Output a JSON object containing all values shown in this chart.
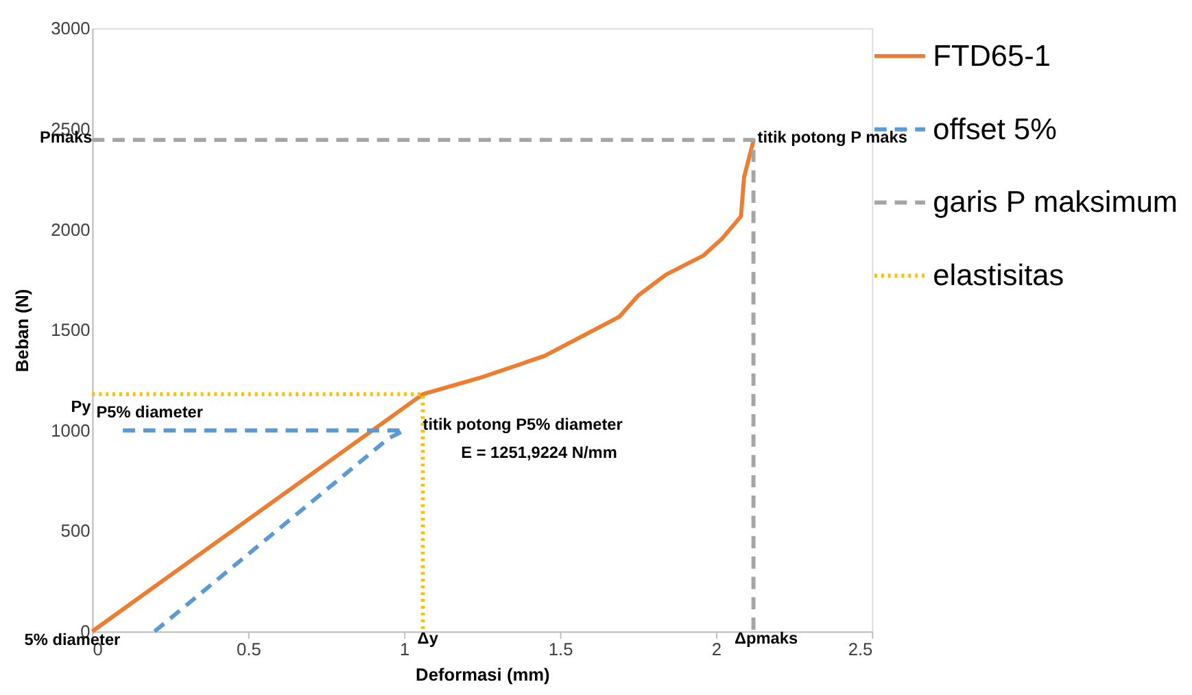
{
  "chart_data": {
    "type": "line",
    "xlabel": "Deformasi (mm)",
    "ylabel": "Beban (N)",
    "xlim": [
      0,
      2.5
    ],
    "xticks": [
      0,
      0.5,
      1,
      1.5,
      2,
      2.5
    ],
    "ylim": [
      0,
      3000
    ],
    "yticks": [
      0,
      500,
      1000,
      1500,
      2000,
      2500,
      3000
    ],
    "grid": false,
    "legend": "right",
    "marker": "none",
    "series": [
      {
        "name": "FTD65-1",
        "color": "#ed7d31",
        "line_style": "solid",
        "x": [
          0,
          1.06,
          1.24,
          1.45,
          1.69,
          1.75,
          1.84,
          1.96,
          2.02,
          2.08,
          2.09,
          2.12
        ],
        "values": [
          0,
          1180,
          1260,
          1370,
          1565,
          1670,
          1775,
          1870,
          1955,
          2065,
          2260,
          2440
        ]
      },
      {
        "name": "offset 5%",
        "color": "#5b9bd5",
        "line_style": "dashed",
        "x": [
          0.2,
          0.95,
          1.0,
          0.08
        ],
        "values": [
          0,
          960,
          1000,
          1000
        ]
      },
      {
        "name": "garis P maksimum",
        "color": "#a5a5a5",
        "line_style": "dashed",
        "x": [
          0,
          2.12,
          2.12
        ],
        "values": [
          2445,
          2445,
          0
        ]
      },
      {
        "name": "elastisitas",
        "color": "#ffc000",
        "line_style": "dotted",
        "x": [
          0,
          1.06,
          1.06
        ],
        "values": [
          1180,
          1180,
          0
        ]
      }
    ],
    "annotations": [
      {
        "text": "Pmaks",
        "x": 0,
        "y": 2445
      },
      {
        "text": "titik potong P maks",
        "x": 2.12,
        "y": 2445
      },
      {
        "text": "Py",
        "x": 0,
        "y": 1180
      },
      {
        "text": "P5% diameter",
        "x": 0,
        "y": 1180
      },
      {
        "text": "titik potong P5% diameter",
        "x": 1.06,
        "y": 1180
      },
      "E =  1251,9224 N/mm",
      {
        "text": "5% diameter",
        "x": 0,
        "y": 0
      },
      {
        "text": "Δy",
        "x": 1.06,
        "y": 0
      },
      {
        "text": "Δpmaks",
        "x": 2.12,
        "y": 0
      }
    ]
  }
}
